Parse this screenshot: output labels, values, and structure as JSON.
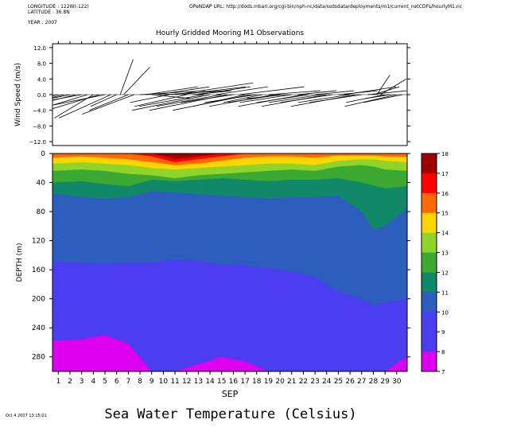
{
  "header": {
    "longitude": "LONGITUDE : 122W(-122)",
    "latitude": "LATITUDE : 36.8N",
    "year": "YEAR : 2007",
    "url": "OPeNDAP URL: http://dods.mbari.org/cgi-bin/nph-nc/data/ssdsdata/deployments/m1/current_netCDFs/hourlyM1.nc",
    "title": "Hourly Gridded Mooring M1 Observations"
  },
  "footer": {
    "timestamp": "Oct  4 2007 13:15:01",
    "bottom_title": "Sea Water Temperature (Celsius)"
  },
  "chart_data": [
    {
      "type": "quiver",
      "title": "Hourly Gridded Mooring M1 Observations",
      "ylabel": "Wind Speed (m/s)",
      "ylim": [
        -13,
        13
      ],
      "yticks": [
        12,
        8,
        4,
        0,
        -4,
        -8,
        -12
      ],
      "ytick_labels": [
        "12.0",
        "8.0",
        "4.0",
        "0.0",
        "−4.0",
        "−8.0",
        "−12.0"
      ],
      "x_range_days": [
        0.5,
        30.9
      ],
      "x": [
        1.0,
        1.5,
        2.0,
        2.5,
        3.0,
        3.5,
        4.0,
        4.5,
        5.0,
        5.5,
        6.0,
        6.3,
        6.6,
        7.0,
        7.5,
        8.0,
        8.5,
        9.0,
        9.5,
        10.0,
        10.5,
        11.0,
        11.5,
        12.0,
        12.5,
        13.0,
        13.5,
        14.0,
        14.5,
        15.0,
        15.5,
        16.0,
        16.5,
        17.0,
        17.5,
        18.0,
        18.5,
        19.0,
        19.5,
        20.0,
        20.5,
        21.0,
        21.5,
        22.0,
        22.5,
        23.0,
        23.5,
        24.0,
        24.5,
        25.0,
        25.5,
        26.0,
        26.5,
        27.0,
        27.5,
        28.0,
        28.3,
        28.6,
        29.0,
        29.5,
        30.0,
        30.5
      ],
      "v_wind_ms": [
        -3,
        -4,
        -2,
        -5,
        -3,
        -4,
        -6,
        -5,
        -4,
        -6,
        -3,
        9,
        7,
        -4,
        -5,
        1,
        2,
        -1,
        2,
        1,
        -2,
        3,
        2,
        -3,
        1,
        2,
        -3,
        -4,
        2,
        -3,
        -4,
        -2,
        2,
        -3,
        -4,
        -2,
        -2,
        1,
        -3,
        -2,
        -1,
        -2,
        1,
        -3,
        -2,
        1,
        -2,
        -3,
        -2,
        1,
        2,
        -2,
        -3,
        -2,
        1,
        2,
        5,
        4,
        -2,
        -1,
        -3,
        -2
      ],
      "u_wind_ms": [
        -4,
        -5,
        -3,
        -6,
        -5,
        -4,
        -3,
        -5,
        -6,
        -4,
        -2,
        1,
        2,
        -3,
        -4,
        5,
        4,
        3,
        4,
        5,
        -3,
        6,
        5,
        -4,
        3,
        4,
        -5,
        -6,
        4,
        -5,
        -6,
        -4,
        5,
        -4,
        -6,
        -4,
        -3,
        4,
        -5,
        -4,
        -3,
        -4,
        3,
        -5,
        -4,
        3,
        -4,
        -5,
        -4,
        3,
        4,
        -4,
        -5,
        -4,
        3,
        2,
        1,
        2,
        -3,
        -2,
        -4,
        -3
      ]
    },
    {
      "type": "heatmap",
      "xlabel": "SEP",
      "ylabel": "DEPTH (m)",
      "ylim": [
        300,
        0
      ],
      "yticks": [
        0,
        40,
        80,
        120,
        160,
        200,
        240,
        280
      ],
      "xticks": [
        1,
        2,
        3,
        4,
        5,
        6,
        7,
        8,
        9,
        10,
        11,
        12,
        13,
        14,
        15,
        16,
        17,
        18,
        19,
        20,
        21,
        22,
        23,
        24,
        25,
        26,
        27,
        28,
        29,
        30
      ],
      "x_range_days": [
        0.5,
        30.9
      ],
      "x": [
        0.5,
        3,
        5,
        7,
        9,
        11,
        13,
        15,
        17,
        19,
        21,
        23,
        25,
        27,
        28,
        29,
        30.9
      ],
      "isotherm_depths_m": [
        {
          "temp": 16,
          "depths": [
            0,
            0,
            0,
            0,
            0,
            8,
            4,
            0,
            0,
            0,
            0,
            0,
            0,
            0,
            0,
            0,
            0
          ]
        },
        {
          "temp": 15,
          "depths": [
            0,
            0,
            0,
            0,
            4,
            12,
            8,
            4,
            0,
            0,
            0,
            0,
            0,
            0,
            0,
            0,
            0
          ]
        },
        {
          "temp": 14,
          "depths": [
            6,
            4,
            6,
            8,
            12,
            16,
            14,
            10,
            6,
            4,
            4,
            6,
            3,
            3,
            3,
            4,
            5
          ]
        },
        {
          "temp": 13,
          "depths": [
            14,
            12,
            14,
            16,
            20,
            22,
            20,
            18,
            16,
            14,
            14,
            16,
            10,
            8,
            8,
            10,
            12
          ]
        },
        {
          "temp": 12,
          "depths": [
            24,
            22,
            24,
            28,
            30,
            34,
            30,
            28,
            26,
            24,
            22,
            24,
            18,
            16,
            18,
            22,
            24
          ]
        },
        {
          "temp": 11,
          "depths": [
            40,
            38,
            42,
            45,
            36,
            38,
            36,
            34,
            36,
            38,
            36,
            36,
            34,
            40,
            44,
            48,
            45
          ]
        },
        {
          "temp": 10,
          "depths": [
            55,
            60,
            62,
            60,
            52,
            54,
            56,
            58,
            60,
            62,
            60,
            60,
            58,
            80,
            105,
            100,
            75
          ]
        },
        {
          "temp": 9,
          "depths": [
            148,
            150,
            152,
            150,
            150,
            146,
            148,
            152,
            154,
            158,
            162,
            170,
            190,
            200,
            210,
            205,
            200
          ]
        },
        {
          "temp": 8,
          "depths": [
            258,
            256,
            250,
            262,
            300,
            300,
            290,
            280,
            286,
            300,
            300,
            300,
            300,
            300,
            300,
            300,
            280
          ]
        }
      ],
      "colorbar": {
        "labels": [
          "18",
          "17",
          "16",
          "15",
          "14",
          "13",
          "12",
          "11",
          "10",
          "9",
          "8",
          "7"
        ],
        "bins": [
          {
            "range": "17-18",
            "color": "#a00000"
          },
          {
            "range": "16-17",
            "color": "#ff0000"
          },
          {
            "range": "15-16",
            "color": "#ff6a00"
          },
          {
            "range": "14-15",
            "color": "#ffd400"
          },
          {
            "range": "13-14",
            "color": "#8ed42a"
          },
          {
            "range": "12-13",
            "color": "#3caa32"
          },
          {
            "range": "11-12",
            "color": "#118868"
          },
          {
            "range": "10-11",
            "color": "#2d5dbd"
          },
          {
            "range": "9-10",
            "color": "#4a3ef0"
          },
          {
            "range": "8-9",
            "color": "#4a3ef0"
          },
          {
            "range": "7-8",
            "color": "#e000f0"
          }
        ]
      }
    }
  ],
  "colors": {
    "c7": "#e000f0",
    "c8": "#4a3ef0",
    "c9": "#2d5dbd",
    "c10": "#118868",
    "c11": "#3caa32",
    "c12": "#8ed42a",
    "c13": "#ffd400",
    "c14": "#ff6a00",
    "c15": "#ff0000",
    "c16": "#a00000"
  }
}
